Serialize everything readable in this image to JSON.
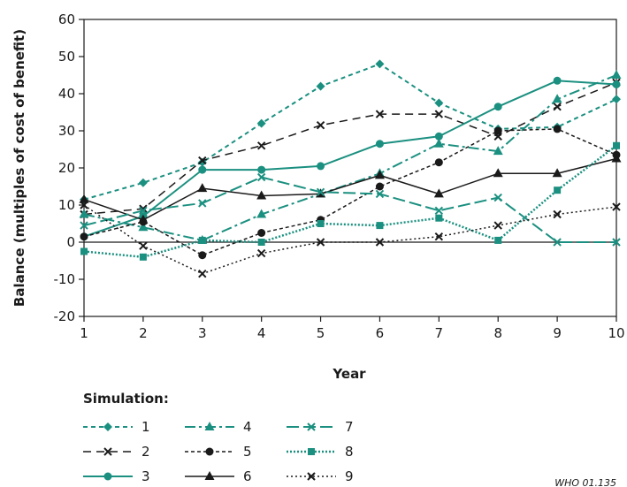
{
  "chart_data": {
    "type": "line",
    "xlabel": "Year",
    "ylabel": "Balance (multiples of cost of benefit)",
    "x": [
      1,
      2,
      3,
      4,
      5,
      6,
      7,
      8,
      9,
      10
    ],
    "xlim": [
      1,
      10
    ],
    "ylim": [
      -20,
      60
    ],
    "yticks": [
      -20,
      -10,
      0,
      10,
      20,
      30,
      40,
      50,
      60
    ],
    "grid": false,
    "legend": {
      "title": "Simulation:",
      "placement": "bottom-left"
    },
    "series": [
      {
        "name": "1",
        "values": [
          11.5,
          16,
          21.5,
          32,
          42,
          48,
          37.5,
          30.5,
          31,
          38.5
        ]
      },
      {
        "name": "2",
        "values": [
          7.5,
          9,
          22,
          26,
          31.5,
          34.5,
          34.5,
          28.5,
          36.5,
          43
        ]
      },
      {
        "name": "3",
        "values": [
          1.5,
          7,
          19.5,
          19.5,
          20.5,
          26.5,
          28.5,
          36.5,
          43.5,
          42.5
        ]
      },
      {
        "name": "4",
        "values": [
          7.5,
          4,
          0.5,
          7.5,
          13,
          18.5,
          26.5,
          24.5,
          38.5,
          45
        ]
      },
      {
        "name": "5",
        "values": [
          1.5,
          5.5,
          -3.5,
          2.5,
          6,
          15,
          21.5,
          30,
          30.5,
          23.5
        ]
      },
      {
        "name": "6",
        "values": [
          11.5,
          6,
          14.5,
          12.5,
          13,
          18,
          13,
          18.5,
          18.5,
          22.5
        ]
      },
      {
        "name": "7",
        "values": [
          4.5,
          8.5,
          10.5,
          17.5,
          13.5,
          13,
          8.5,
          12,
          0,
          0
        ]
      },
      {
        "name": "8",
        "values": [
          -2.5,
          -4,
          0.5,
          0,
          5,
          4.5,
          6.5,
          0.5,
          14,
          26
        ]
      },
      {
        "name": "9",
        "values": [
          10,
          -1,
          -8.5,
          -3,
          0,
          0,
          1.5,
          4.5,
          7.5,
          9.5
        ]
      }
    ]
  },
  "colors": {
    "teal": "#1b9080",
    "black": "#1a1a1a"
  },
  "series_styles": [
    {
      "color": "#1b9080",
      "dash": "5,4",
      "marker": "diamond",
      "width": 2
    },
    {
      "color": "#1a1a1a",
      "dash": "9,6",
      "marker": "x",
      "width": 1.5
    },
    {
      "color": "#1b9080",
      "dash": "",
      "marker": "circle",
      "width": 2
    },
    {
      "color": "#1b9080",
      "dash": "12,4,3,4",
      "marker": "triangle",
      "width": 2
    },
    {
      "color": "#1a1a1a",
      "dash": "4,3",
      "marker": "circle",
      "width": 1.5
    },
    {
      "color": "#1a1a1a",
      "dash": "",
      "marker": "triangle",
      "width": 1.5
    },
    {
      "color": "#1b9080",
      "dash": "14,5",
      "marker": "x",
      "width": 2
    },
    {
      "color": "#1b9080",
      "dash": "2,2",
      "marker": "square",
      "width": 2.5
    },
    {
      "color": "#1a1a1a",
      "dash": "2,3",
      "marker": "x",
      "width": 1.5
    }
  ],
  "credit": "WHO 01.135"
}
